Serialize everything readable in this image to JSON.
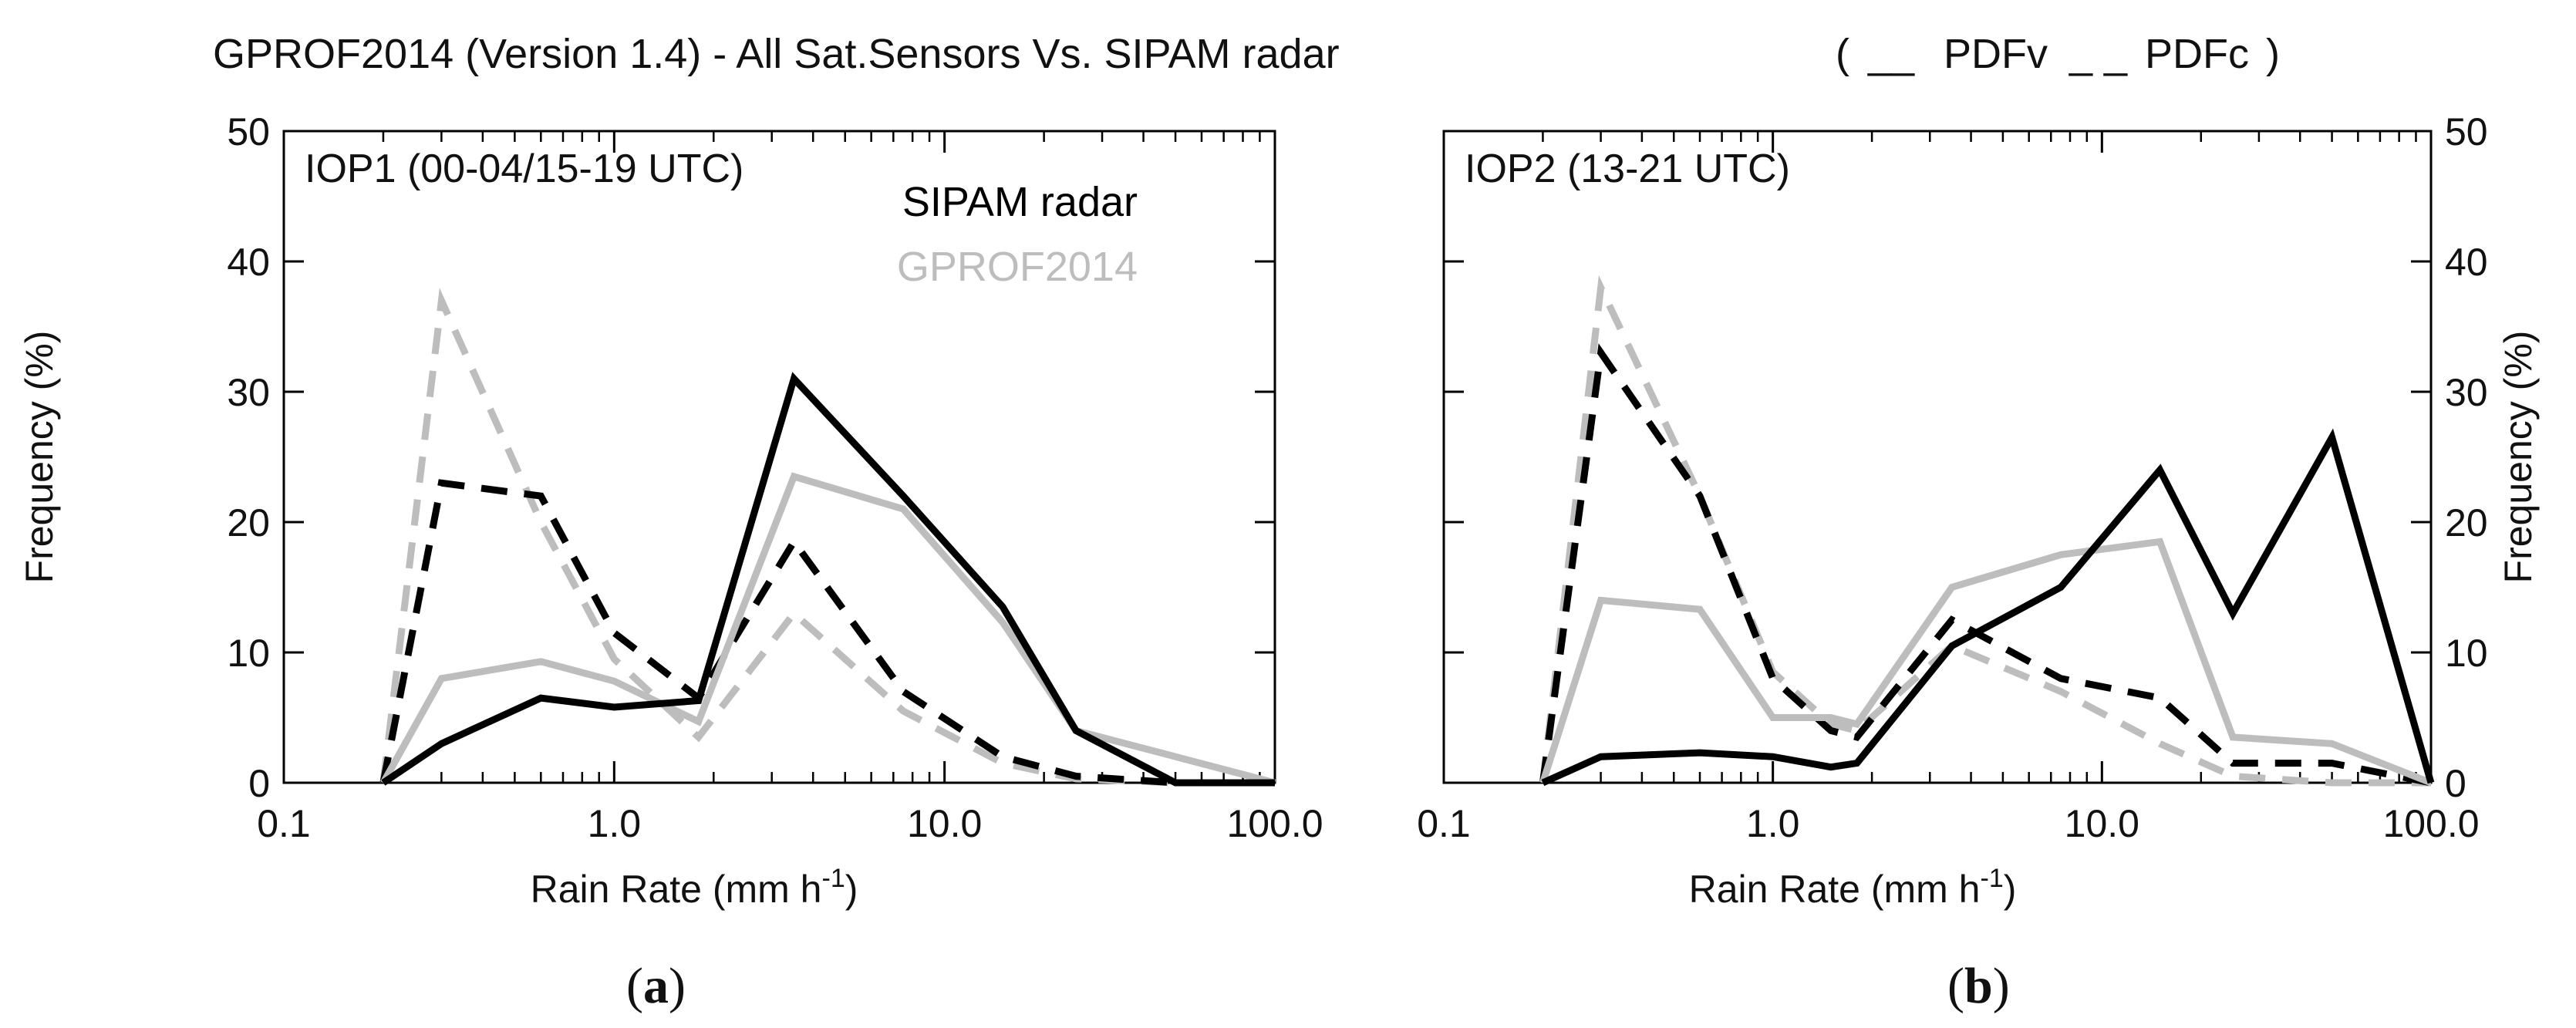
{
  "figure": {
    "title": "GPROF2014 (Version 1.4) - All Sat.Sensors Vs. SIPAM radar",
    "line_key": {
      "open": "(",
      "solid_sample": "__",
      "solid_label": "PDFv",
      "dashed_sample": "_ _",
      "dashed_label": "PDFc",
      "close": ")"
    },
    "colors": {
      "radar": "#000000",
      "gprof": "#bdbdbd",
      "axis": "#000000"
    }
  },
  "chart_data": [
    {
      "type": "line",
      "panel_label": "IOP1 (00-04/15-19 UTC)",
      "caption": {
        "open": "(",
        "letter": "a",
        "close": ")"
      },
      "xscale": "log",
      "xlim": [
        0.1,
        100.0
      ],
      "ylim": [
        0,
        50
      ],
      "x_ticks": [
        "0.1",
        "1.0",
        "10.0",
        "100.0"
      ],
      "y_ticks": [
        "0",
        "10",
        "20",
        "30",
        "40",
        "50"
      ],
      "xlabel": {
        "main": "Rain Rate (mm h",
        "sup": "-1",
        "close": ")"
      },
      "ylabel": "Frequency (%)",
      "y_axis_side": "left",
      "legend": {
        "position": "top-right",
        "entries": [
          "SIPAM radar",
          "GPROF2014"
        ]
      },
      "x": [
        0.2,
        0.3,
        0.6,
        1.0,
        1.8,
        3.5,
        7.5,
        15.0,
        25.0,
        50.0,
        100.0
      ],
      "series": [
        {
          "name": "SIPAM radar",
          "kind": "PDFv",
          "style": "solid",
          "color": "#000000",
          "values": [
            0.0,
            3.0,
            6.5,
            5.8,
            6.3,
            31.0,
            22.0,
            13.5,
            4.0,
            0.0,
            0.0
          ]
        },
        {
          "name": "GPROF2014",
          "kind": "PDFv",
          "style": "solid",
          "color": "#bdbdbd",
          "values": [
            0.0,
            8.0,
            9.3,
            7.8,
            4.7,
            23.5,
            21.0,
            12.3,
            4.0,
            2.0,
            0.0
          ]
        },
        {
          "name": "SIPAM radar",
          "kind": "PDFc",
          "style": "dashed",
          "color": "#000000",
          "values": [
            0.0,
            23.0,
            22.0,
            11.5,
            6.5,
            18.5,
            7.0,
            2.0,
            0.5,
            0.0,
            0.0
          ]
        },
        {
          "name": "GPROF2014",
          "kind": "PDFc",
          "style": "dashed",
          "color": "#bdbdbd",
          "values": [
            0.0,
            37.0,
            20.0,
            9.5,
            3.5,
            13.0,
            5.5,
            1.5,
            0.3,
            0.0,
            0.0
          ]
        }
      ]
    },
    {
      "type": "line",
      "panel_label": "IOP2 (13-21 UTC)",
      "caption": {
        "open": "(",
        "letter": "b",
        "close": ")"
      },
      "xscale": "log",
      "xlim": [
        0.1,
        100.0
      ],
      "ylim": [
        0,
        50
      ],
      "x_ticks": [
        "0.1",
        "1.0",
        "10.0",
        "100.0"
      ],
      "y_ticks": [
        "0",
        "10",
        "20",
        "30",
        "40",
        "50"
      ],
      "xlabel": {
        "main": "Rain Rate (mm h",
        "sup": "-1",
        "close": ")"
      },
      "ylabel": "Frequency (%)",
      "y_axis_side": "right",
      "legend": null,
      "x": [
        0.2,
        0.3,
        0.6,
        1.0,
        1.5,
        1.8,
        3.5,
        7.5,
        15.0,
        25.0,
        50.0,
        100.0
      ],
      "series": [
        {
          "name": "SIPAM radar",
          "kind": "PDFv",
          "style": "solid",
          "color": "#000000",
          "values": [
            0.0,
            2.0,
            2.3,
            2.0,
            1.2,
            1.5,
            10.5,
            15.0,
            24.0,
            13.0,
            26.5,
            0.0
          ]
        },
        {
          "name": "GPROF2014",
          "kind": "PDFv",
          "style": "solid",
          "color": "#bdbdbd",
          "values": [
            0.0,
            14.0,
            13.3,
            5.0,
            5.0,
            4.5,
            15.0,
            17.5,
            18.5,
            3.5,
            3.0,
            0.0
          ]
        },
        {
          "name": "SIPAM radar",
          "kind": "PDFc",
          "style": "dashed",
          "color": "#000000",
          "values": [
            0.0,
            33.0,
            22.0,
            8.0,
            4.0,
            3.5,
            12.5,
            8.0,
            6.5,
            1.5,
            1.5,
            0.0
          ]
        },
        {
          "name": "GPROF2014",
          "kind": "PDFc",
          "style": "dashed",
          "color": "#bdbdbd",
          "values": [
            0.0,
            38.0,
            22.0,
            8.5,
            4.5,
            4.0,
            10.5,
            7.0,
            3.0,
            0.5,
            0.0,
            0.0
          ]
        }
      ]
    }
  ]
}
